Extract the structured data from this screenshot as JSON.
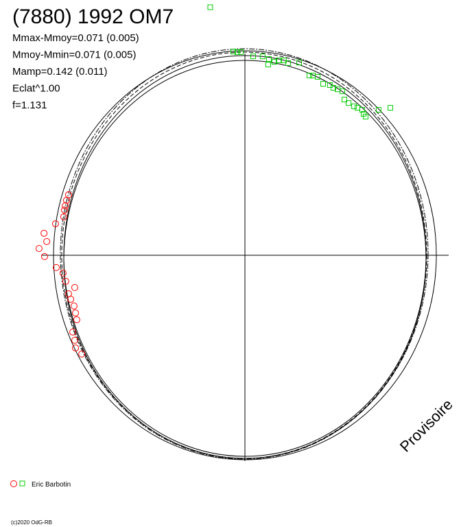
{
  "chart_data": {
    "type": "scatter",
    "title": "(7880) 1992 OM7",
    "annotations": [
      "Mmax-Mmoy=0.071 (0.005)",
      "Mmoy-Mmin=0.071 (0.005)",
      "Mamp=0.142 (0.011)",
      "Eclat^1.00",
      "f=1.131"
    ],
    "watermark": "Provisoire",
    "legend": "Eric Barbotin",
    "copyright": "(c)2020 OdG-RB",
    "xlim": [
      -1.12,
      1.12
    ],
    "ylim": [
      -1.12,
      1.12
    ],
    "series": [
      {
        "color": "#ff0000",
        "marker": "circle",
        "x": [
          -0.963,
          -0.974,
          -0.981,
          -0.985,
          -0.989,
          -1.034,
          -1.097,
          -1.082,
          -1.124,
          -1.094,
          -1.03,
          -0.993,
          -0.978,
          -0.929,
          -0.963,
          -0.951,
          -0.933,
          -0.925,
          -0.918,
          -0.94,
          -0.929,
          -0.925,
          -0.891
        ],
        "values": [
          0.33,
          0.3,
          0.27,
          0.247,
          0.21,
          0.172,
          0.12,
          0.075,
          0.037,
          -0.007,
          -0.067,
          -0.097,
          -0.142,
          -0.176,
          -0.21,
          -0.24,
          -0.277,
          -0.315,
          -0.352,
          -0.419,
          -0.464,
          -0.506,
          -0.539
        ]
      },
      {
        "color": "#00cc00",
        "marker": "square",
        "x": [
          -0.064,
          -0.041,
          -0.022,
          0.045,
          0.097,
          0.127,
          0.131,
          0.161,
          0.184,
          0.213,
          0.236,
          0.296,
          0.352,
          0.371,
          0.397,
          0.427,
          0.464,
          0.483,
          0.506,
          0.532,
          0.543,
          0.566,
          0.596,
          0.614,
          0.64,
          0.648,
          0.659,
          0.73,
          0.794
        ],
        "values": [
          1.112,
          1.109,
          1.109,
          1.086,
          1.086,
          1.041,
          1.071,
          1.056,
          1.064,
          1.064,
          1.049,
          1.052,
          0.981,
          0.981,
          0.974,
          0.936,
          0.929,
          0.914,
          0.906,
          0.895,
          0.85,
          0.831,
          0.813,
          0.805,
          0.794,
          0.772,
          0.757,
          0.794,
          0.805
        ]
      }
    ]
  }
}
